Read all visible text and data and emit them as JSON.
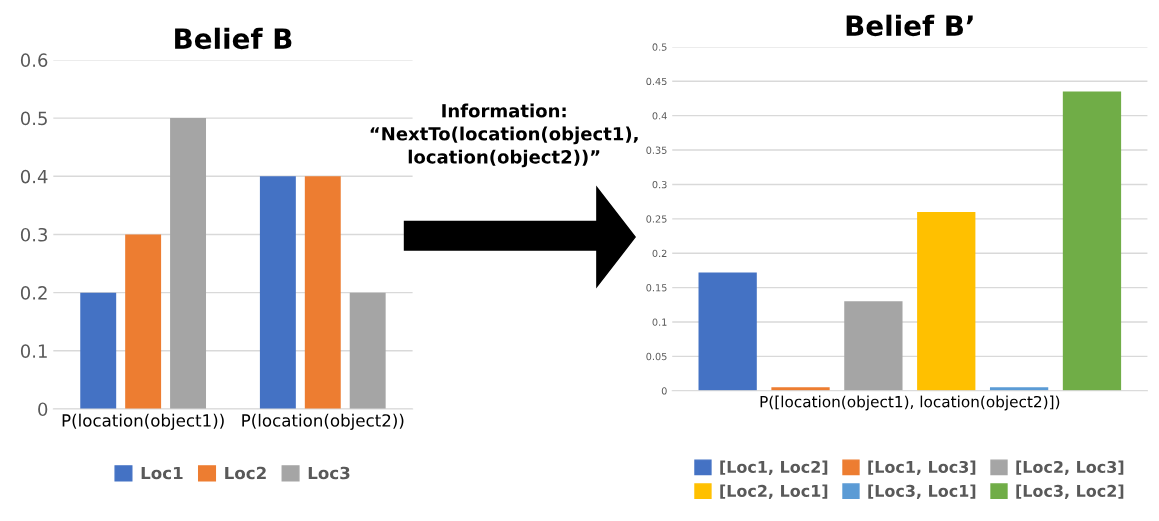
{
  "chart_data": [
    {
      "type": "bar",
      "title": "Belief B",
      "categories": [
        "P(location(object1))",
        "P(location(object2))"
      ],
      "series": [
        {
          "name": "Loc1",
          "color": "#4472c4",
          "values": [
            0.2,
            0.4
          ]
        },
        {
          "name": "Loc2",
          "color": "#ed7d31",
          "values": [
            0.3,
            0.4
          ]
        },
        {
          "name": "Loc3",
          "color": "#a5a5a5",
          "values": [
            0.5,
            0.2
          ]
        }
      ],
      "ylim": [
        0,
        0.6
      ],
      "yticks": [
        0,
        0.1,
        0.2,
        0.3,
        0.4,
        0.5,
        0.6
      ],
      "grid": "y",
      "legend": "bottom",
      "annotations": [
        "Information:\n“NextTo(location(object1),\nlocation(object2))”"
      ]
    },
    {
      "type": "bar",
      "title": "Belief B’",
      "categories": [
        "P([location(object1), location(object2)])"
      ],
      "series": [
        {
          "name": "[Loc1, Loc2]",
          "color": "#4472c4",
          "values": [
            0.172
          ]
        },
        {
          "name": "[Loc1, Loc3]",
          "color": "#ed7d31",
          "values": [
            0.005
          ]
        },
        {
          "name": "[Loc2, Loc3]",
          "color": "#a5a5a5",
          "values": [
            0.13
          ]
        },
        {
          "name": "[Loc2, Loc1]",
          "color": "#ffc000",
          "values": [
            0.26
          ]
        },
        {
          "name": "[Loc3, Loc1]",
          "color": "#5b9bd5",
          "values": [
            0.005
          ]
        },
        {
          "name": "[Loc3, Loc2]",
          "color": "#70ad47",
          "values": [
            0.435
          ]
        }
      ],
      "ylim": [
        0,
        0.5
      ],
      "yticks": [
        0,
        0.05,
        0.1,
        0.15,
        0.2,
        0.25,
        0.3,
        0.35,
        0.4,
        0.45,
        0.5
      ],
      "grid": "y",
      "legend": "bottom"
    }
  ]
}
